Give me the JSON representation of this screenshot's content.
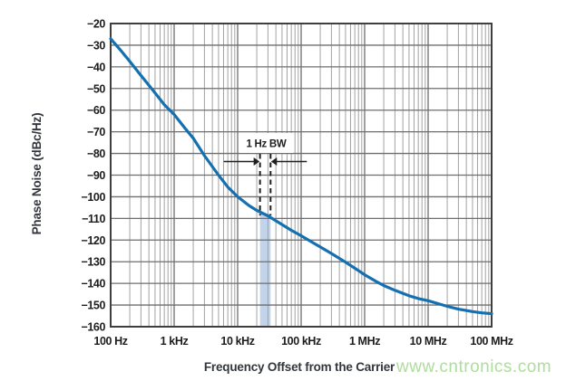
{
  "watermark": {
    "text": "www.cntronics.com",
    "color": "#aedd9d"
  },
  "chart_data": {
    "type": "line",
    "title": "",
    "xlabel": "Frequency Offset from the Carrier",
    "ylabel": "Phase Noise (dBc/Hz)",
    "x_scale": "log",
    "xlim": [
      100,
      100000000
    ],
    "ylim": [
      -160,
      -20
    ],
    "grid": "log minor vertical lines on; 10 dB major horizontal lines on",
    "legend": "none",
    "x_ticks": [
      {
        "f": 100,
        "label": "100 Hz"
      },
      {
        "f": 1000,
        "label": "1 kHz"
      },
      {
        "f": 10000,
        "label": "10 kHz"
      },
      {
        "f": 100000,
        "label": "100 kHz"
      },
      {
        "f": 1000000,
        "label": "1 MHz"
      },
      {
        "f": 10000000,
        "label": "10 MHz"
      },
      {
        "f": 100000000,
        "label": "100 MHz"
      }
    ],
    "y_ticks": [
      {
        "v": -20,
        "label": "−20"
      },
      {
        "v": -30,
        "label": "−30"
      },
      {
        "v": -40,
        "label": "−40"
      },
      {
        "v": -50,
        "label": "−50"
      },
      {
        "v": -60,
        "label": "−60"
      },
      {
        "v": -70,
        "label": "−70"
      },
      {
        "v": -80,
        "label": "−80"
      },
      {
        "v": -90,
        "label": "−90"
      },
      {
        "v": -100,
        "label": "−100"
      },
      {
        "v": -110,
        "label": "−110"
      },
      {
        "v": -120,
        "label": "−120"
      },
      {
        "v": -130,
        "label": "−130"
      },
      {
        "v": -140,
        "label": "−140"
      },
      {
        "v": -150,
        "label": "−150"
      },
      {
        "v": -160,
        "label": "−160"
      }
    ],
    "series": [
      {
        "name": "Phase Noise",
        "color": "#1470b0",
        "points": [
          [
            100,
            -27
          ],
          [
            150,
            -33
          ],
          [
            200,
            -37.5
          ],
          [
            300,
            -44
          ],
          [
            500,
            -52
          ],
          [
            700,
            -57.5
          ],
          [
            1000,
            -62
          ],
          [
            1500,
            -68.5
          ],
          [
            2000,
            -73
          ],
          [
            3000,
            -81
          ],
          [
            5000,
            -90
          ],
          [
            7000,
            -95.5
          ],
          [
            10000,
            -100
          ],
          [
            15000,
            -104
          ],
          [
            20000,
            -106.3
          ],
          [
            30000,
            -108.8
          ],
          [
            50000,
            -112.8
          ],
          [
            70000,
            -115.5
          ],
          [
            100000,
            -118
          ],
          [
            150000,
            -121
          ],
          [
            200000,
            -123.2
          ],
          [
            300000,
            -126.2
          ],
          [
            500000,
            -130.2
          ],
          [
            700000,
            -133
          ],
          [
            1000000,
            -136
          ],
          [
            1500000,
            -139
          ],
          [
            2000000,
            -141
          ],
          [
            3000000,
            -143.2
          ],
          [
            5000000,
            -145.7
          ],
          [
            7000000,
            -147
          ],
          [
            10000000,
            -148
          ],
          [
            15000000,
            -149.5
          ],
          [
            20000000,
            -150.6
          ],
          [
            30000000,
            -151.9
          ],
          [
            50000000,
            -153
          ],
          [
            70000000,
            -153.6
          ],
          [
            100000000,
            -154
          ]
        ]
      }
    ],
    "annotation": {
      "label": "1 Hz BW",
      "band_freqs": [
        22500,
        33000
      ],
      "band_top_dB": -107.8,
      "band_color": "#c3d3ea",
      "marker_style": "dashed vertical lines with inward arrows"
    },
    "colors": {
      "major_grid": "#6e6e6e",
      "minor_grid": "#a2a2a2",
      "frame": "#3f3f3f",
      "curve": "#1470b0",
      "band": "#c3d3ea",
      "annotation_ink": "#1f1f1f"
    }
  }
}
